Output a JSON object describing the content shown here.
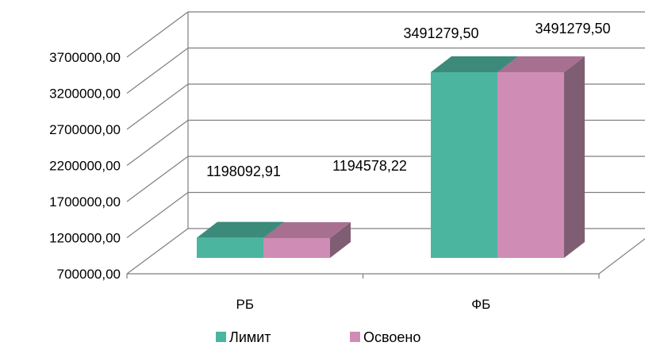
{
  "chart_data": {
    "type": "bar",
    "categories": [
      "РБ",
      "ФБ"
    ],
    "series": [
      {
        "name": "Лимит",
        "values": [
          1198092.91,
          3491279.5
        ],
        "labels": [
          "1198092,91",
          "3491279,50"
        ]
      },
      {
        "name": "Освоено",
        "values": [
          1194578.22,
          3491279.5
        ],
        "labels": [
          "1194578,22",
          "3491279,50"
        ]
      }
    ],
    "ylim": [
      700000,
      3700000
    ],
    "ticks": [
      "700000,00",
      "1200000,00",
      "1700000,00",
      "2200000,00",
      "2700000,00",
      "3200000,00",
      "3700000,00"
    ],
    "grid": true,
    "style": "3d-column",
    "legend_position": "bottom"
  },
  "colors": {
    "limit_front": "#4bb5a0",
    "limit_top": "#3b8a7a",
    "limit_side": "#3b8a7a",
    "osvoeno_front": "#cf8db6",
    "osvoeno_top": "#a87090",
    "osvoeno_side": "#7f5e74",
    "grid": "#7f7f7f"
  }
}
